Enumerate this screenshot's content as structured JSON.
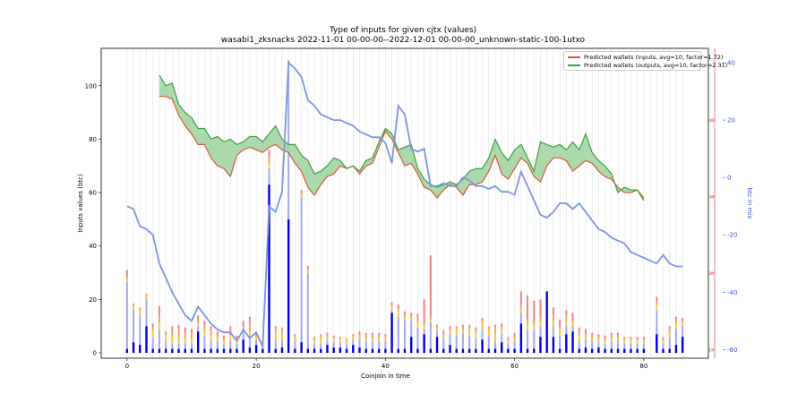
{
  "chart_data": {
    "type": "bar",
    "title": "Type of inputs for given cjtx (values)",
    "subtitle": "wasabi1_zksnacks 2022-11-01 00-00-00--2022-12-01 00-00-00_unknown-static-100-1utxo",
    "xlabel": "Coinjoin in time",
    "ylabel": "Inputs values (btc)",
    "y2label": "btc in mix",
    "xlim": [
      -4,
      90
    ],
    "ylim": [
      -2,
      114
    ],
    "y2lim": [
      -63,
      45
    ],
    "x_ticks": [
      0,
      20,
      40,
      60,
      80
    ],
    "y_ticks": [
      0,
      20,
      40,
      60,
      80,
      100
    ],
    "y2_ticks": [
      -60,
      -40,
      -20,
      0,
      20,
      40
    ],
    "y3_ticks": [
      {
        "value": -60,
        "label": "10"
      },
      {
        "value": -33.3,
        "label": "20"
      },
      {
        "value": -6.6,
        "label": "30"
      },
      {
        "value": 20,
        "label": "40"
      }
    ],
    "grid": "x-vertical-lines",
    "legend_position": "top-right",
    "colors": {
      "bar_bottom": "#0000dd",
      "bar_light_blue": "#a3a8f0",
      "bar_yellow": "#f5c842",
      "bar_orange": "#f4a460",
      "bar_red": "#f08080",
      "inputs_line": "#d9573b",
      "outputs_line": "#3aa33a",
      "band_fill": "#9fd49f",
      "btc_line": "#7b96e0",
      "right_axis": "#3355cc",
      "red_axis": "#cc3333"
    },
    "bars": [
      {
        "x": 0,
        "values": [
          1.5,
          25,
          1,
          1,
          2.5
        ]
      },
      {
        "x": 1,
        "values": [
          4,
          12,
          1,
          1,
          0.5
        ]
      },
      {
        "x": 2,
        "values": [
          3,
          11,
          1.5,
          1,
          0.5
        ]
      },
      {
        "x": 3,
        "values": [
          10,
          10,
          1,
          1,
          0
        ]
      },
      {
        "x": 4,
        "values": [
          1.5,
          4,
          3,
          1,
          1.5
        ]
      },
      {
        "x": 5,
        "values": [
          1.5,
          7,
          3,
          2,
          4
        ]
      },
      {
        "x": 6,
        "values": [
          1.5,
          3,
          2,
          1,
          0.5
        ]
      },
      {
        "x": 7,
        "values": [
          1.5,
          2,
          3,
          2,
          1.5
        ]
      },
      {
        "x": 8,
        "values": [
          1.5,
          2,
          2,
          3,
          2
        ]
      },
      {
        "x": 9,
        "values": [
          1.5,
          2,
          2,
          2,
          2
        ]
      },
      {
        "x": 10,
        "values": [
          1.5,
          2,
          2,
          2,
          1.5
        ]
      },
      {
        "x": 11,
        "values": [
          8,
          2,
          1,
          1,
          2
        ]
      },
      {
        "x": 12,
        "values": [
          1.5,
          5,
          2,
          2,
          1.5
        ]
      },
      {
        "x": 13,
        "values": [
          1.5,
          3,
          2,
          2,
          1.5
        ]
      },
      {
        "x": 14,
        "values": [
          1.5,
          3,
          1,
          1,
          1.5
        ]
      },
      {
        "x": 15,
        "values": [
          1.5,
          2,
          1,
          1,
          1
        ]
      },
      {
        "x": 16,
        "values": [
          1.5,
          3,
          2,
          2,
          1.5
        ]
      },
      {
        "x": 17,
        "values": [
          1.5,
          2,
          1,
          1,
          1
        ]
      },
      {
        "x": 18,
        "values": [
          5,
          3,
          1,
          1,
          2
        ]
      },
      {
        "x": 19,
        "values": [
          2,
          4,
          2,
          3,
          2.5
        ]
      },
      {
        "x": 20,
        "values": [
          3,
          2,
          1,
          1,
          1
        ]
      },
      {
        "x": 21,
        "values": [
          1.5,
          2,
          0.5,
          0.5,
          0
        ]
      },
      {
        "x": 22,
        "values": [
          63,
          6,
          2,
          2,
          3
        ]
      },
      {
        "x": 23,
        "values": [
          1.5,
          3,
          3,
          2,
          0.5
        ]
      },
      {
        "x": 24,
        "values": [
          2,
          3,
          2,
          2,
          0.5
        ]
      },
      {
        "x": 25,
        "values": [
          50,
          56,
          1,
          1,
          1.5
        ]
      },
      {
        "x": 26,
        "values": [
          1.5,
          3,
          1,
          1,
          0.5
        ]
      },
      {
        "x": 27,
        "values": [
          4,
          54,
          1,
          1,
          1
        ]
      },
      {
        "x": 28,
        "values": [
          1.5,
          28,
          1,
          1,
          1
        ]
      },
      {
        "x": 29,
        "values": [
          1.5,
          2,
          1,
          1,
          0.5
        ]
      },
      {
        "x": 30,
        "values": [
          1.5,
          2,
          2,
          1,
          0.5
        ]
      },
      {
        "x": 31,
        "values": [
          3,
          2,
          1,
          1,
          0.5
        ]
      },
      {
        "x": 32,
        "values": [
          2,
          2,
          1,
          1,
          0.5
        ]
      },
      {
        "x": 33,
        "values": [
          2,
          2,
          1,
          1,
          0
        ]
      },
      {
        "x": 34,
        "values": [
          1.5,
          2,
          1,
          1,
          0
        ]
      },
      {
        "x": 35,
        "values": [
          3,
          2,
          1,
          0.5,
          0.5
        ]
      },
      {
        "x": 36,
        "values": [
          2,
          3,
          1,
          1,
          1
        ]
      },
      {
        "x": 37,
        "values": [
          1.5,
          3,
          1,
          1,
          1
        ]
      },
      {
        "x": 38,
        "values": [
          1.5,
          3,
          1,
          1,
          1
        ]
      },
      {
        "x": 39,
        "values": [
          1.5,
          3,
          1,
          1,
          1
        ]
      },
      {
        "x": 40,
        "values": [
          1.5,
          3,
          1,
          1,
          0.5
        ]
      },
      {
        "x": 41,
        "values": [
          15,
          1,
          1,
          1,
          1
        ]
      },
      {
        "x": 42,
        "values": [
          1.5,
          12,
          2,
          1,
          1.5
        ]
      },
      {
        "x": 43,
        "values": [
          1.5,
          11,
          1,
          1,
          1
        ]
      },
      {
        "x": 44,
        "values": [
          6,
          6,
          1,
          1,
          1
        ]
      },
      {
        "x": 45,
        "values": [
          1.5,
          8,
          2,
          2,
          1
        ]
      },
      {
        "x": 46,
        "values": [
          7,
          2,
          1,
          1,
          9
        ]
      },
      {
        "x": 47,
        "values": [
          1.5,
          10,
          1,
          1,
          23
        ]
      },
      {
        "x": 48,
        "values": [
          6,
          2,
          1,
          1,
          0.5
        ]
      },
      {
        "x": 49,
        "values": [
          1.5,
          4,
          1,
          1,
          1
        ]
      },
      {
        "x": 50,
        "values": [
          3,
          4,
          1,
          1,
          1
        ]
      },
      {
        "x": 51,
        "values": [
          1.5,
          5,
          2,
          1,
          0.5
        ]
      },
      {
        "x": 52,
        "values": [
          1.5,
          6,
          1,
          1,
          1
        ]
      },
      {
        "x": 53,
        "values": [
          1.5,
          5,
          2,
          1,
          1
        ]
      },
      {
        "x": 54,
        "values": [
          1.5,
          4,
          2,
          1,
          1
        ]
      },
      {
        "x": 55,
        "values": [
          5,
          4,
          2,
          1,
          1
        ]
      },
      {
        "x": 56,
        "values": [
          1.5,
          5,
          2,
          1,
          0.5
        ]
      },
      {
        "x": 57,
        "values": [
          1.5,
          3,
          3,
          2,
          1
        ]
      },
      {
        "x": 58,
        "values": [
          4,
          3,
          2,
          1,
          1
        ]
      },
      {
        "x": 59,
        "values": [
          1.5,
          2,
          1,
          1,
          0.5
        ]
      },
      {
        "x": 60,
        "values": [
          1.5,
          3,
          1,
          1,
          1
        ]
      },
      {
        "x": 61,
        "values": [
          11,
          4,
          1,
          2,
          5
        ]
      },
      {
        "x": 62,
        "values": [
          1.5,
          7,
          2,
          2,
          9
        ]
      },
      {
        "x": 63,
        "values": [
          1.5,
          7,
          2,
          1,
          8
        ]
      },
      {
        "x": 64,
        "values": [
          6,
          4,
          2,
          2,
          6
        ]
      },
      {
        "x": 65,
        "values": [
          23,
          0,
          0,
          0,
          0
        ]
      },
      {
        "x": 66,
        "values": [
          6,
          4,
          2,
          2,
          3
        ]
      },
      {
        "x": 67,
        "values": [
          1.5,
          5,
          2,
          1,
          3
        ]
      },
      {
        "x": 68,
        "values": [
          7,
          3,
          2,
          2,
          2
        ]
      },
      {
        "x": 69,
        "values": [
          8,
          2,
          1,
          1,
          3
        ]
      },
      {
        "x": 70,
        "values": [
          1.5,
          3,
          2,
          2,
          1
        ]
      },
      {
        "x": 71,
        "values": [
          2,
          3,
          1,
          1,
          2
        ]
      },
      {
        "x": 72,
        "values": [
          1.5,
          3,
          1,
          1,
          1
        ]
      },
      {
        "x": 73,
        "values": [
          2,
          2,
          1,
          1,
          1
        ]
      },
      {
        "x": 74,
        "values": [
          1.5,
          2,
          1,
          1,
          1
        ]
      },
      {
        "x": 75,
        "values": [
          1.5,
          3,
          1,
          1,
          1
        ]
      },
      {
        "x": 76,
        "values": [
          1.5,
          3,
          1,
          1,
          1
        ]
      },
      {
        "x": 77,
        "values": [
          1.5,
          2,
          1,
          1,
          0.5
        ]
      },
      {
        "x": 78,
        "values": [
          1.5,
          2,
          1,
          1,
          0.5
        ]
      },
      {
        "x": 79,
        "values": [
          1.5,
          2,
          1,
          1,
          0.5
        ]
      },
      {
        "x": 80,
        "values": [
          1.5,
          2,
          1,
          1,
          0.5
        ]
      },
      {
        "x": 82,
        "values": [
          7,
          9,
          2,
          1,
          2
        ]
      },
      {
        "x": 83,
        "values": [
          1.5,
          2,
          1,
          1,
          0.5
        ]
      },
      {
        "x": 84,
        "values": [
          1.5,
          4,
          2,
          2,
          0.5
        ]
      },
      {
        "x": 85,
        "values": [
          3,
          6,
          2,
          1,
          1.5
        ]
      },
      {
        "x": 86,
        "values": [
          6,
          4,
          1,
          1,
          1
        ]
      }
    ],
    "series": [
      {
        "name": "Predicted wallets (inputs, avg=10, factor=1.72)",
        "x": [
          5,
          6,
          7,
          8,
          9,
          10,
          11,
          12,
          13,
          14,
          15,
          16,
          17,
          18,
          19,
          20,
          21,
          22,
          23,
          24,
          25,
          26,
          27,
          28,
          29,
          30,
          31,
          32,
          33,
          34,
          35,
          36,
          37,
          38,
          39,
          40,
          41,
          42,
          43,
          44,
          45,
          46,
          47,
          48,
          49,
          50,
          51,
          52,
          53,
          54,
          55,
          56,
          57,
          58,
          59,
          60,
          61,
          62,
          63,
          64,
          65,
          66,
          67,
          68,
          69,
          70,
          71,
          72,
          73,
          74,
          75,
          76,
          77,
          78,
          79,
          80
        ],
        "y": [
          96,
          96,
          95,
          89,
          85,
          82,
          78,
          78,
          73,
          70,
          69,
          66,
          74,
          76,
          77,
          76,
          75,
          77,
          78,
          76,
          75,
          71,
          68,
          62,
          59,
          63,
          66,
          67,
          70,
          69,
          70,
          67,
          70,
          71,
          77,
          83,
          80,
          75,
          70,
          71,
          67,
          62,
          61,
          58,
          61,
          63,
          62,
          59,
          63,
          63,
          64,
          68,
          74,
          67,
          65,
          69,
          73,
          71,
          66,
          64,
          70,
          73,
          73,
          72,
          68,
          70,
          72,
          71,
          68,
          66,
          65,
          62,
          60,
          60,
          61,
          58
        ]
      },
      {
        "name": "Predicted wallets (outputs, avg=10, factor=2.31)",
        "x": [
          5,
          6,
          7,
          8,
          9,
          10,
          11,
          12,
          13,
          14,
          15,
          16,
          17,
          18,
          19,
          20,
          21,
          22,
          23,
          24,
          25,
          26,
          27,
          28,
          29,
          30,
          31,
          32,
          33,
          34,
          35,
          36,
          37,
          38,
          39,
          40,
          41,
          42,
          43,
          44,
          45,
          46,
          47,
          48,
          49,
          50,
          51,
          52,
          53,
          54,
          55,
          56,
          57,
          58,
          59,
          60,
          61,
          62,
          63,
          64,
          65,
          66,
          67,
          68,
          69,
          70,
          71,
          72,
          73,
          74,
          75,
          76,
          77,
          78,
          79,
          80
        ],
        "y": [
          104,
          100,
          101,
          93,
          90,
          88,
          84,
          84,
          80,
          81,
          79,
          80,
          78,
          79,
          81,
          81,
          79,
          82,
          85,
          80,
          78,
          78,
          74,
          72,
          67,
          68,
          70,
          73,
          72,
          69,
          70,
          68,
          72,
          73,
          79,
          84,
          82,
          76,
          77,
          78,
          69,
          65,
          63,
          62,
          63,
          64,
          63,
          65,
          68,
          69,
          69,
          73,
          80,
          75,
          72,
          76,
          78,
          73,
          68,
          79,
          78,
          77,
          78,
          76,
          79,
          76,
          82,
          75,
          72,
          70,
          67,
          60,
          62,
          61,
          61,
          57
        ]
      },
      {
        "name": "btc in mix",
        "axis": "right",
        "x": [
          0,
          1,
          2,
          3,
          4,
          5,
          6,
          7,
          8,
          9,
          10,
          11,
          12,
          13,
          14,
          15,
          16,
          17,
          18,
          19,
          20,
          21,
          22,
          23,
          24,
          25,
          26,
          27,
          28,
          29,
          30,
          31,
          32,
          33,
          34,
          35,
          36,
          37,
          38,
          39,
          40,
          41,
          42,
          43,
          44,
          45,
          46,
          47,
          48,
          49,
          50,
          51,
          52,
          53,
          54,
          55,
          56,
          57,
          58,
          59,
          60,
          61,
          62,
          63,
          64,
          65,
          66,
          67,
          68,
          69,
          70,
          71,
          72,
          73,
          74,
          75,
          76,
          77,
          78,
          79,
          80,
          81,
          82,
          83,
          84,
          85,
          86
        ],
        "y": [
          -10,
          -11,
          -17,
          -18,
          -20,
          -30,
          -35,
          -40,
          -44,
          -48,
          -50,
          -45,
          -48,
          -51,
          -53,
          -54,
          -54,
          -57,
          -53,
          -56,
          -54,
          -59,
          -10,
          -12,
          -5,
          40,
          38,
          35,
          27,
          25,
          22,
          21,
          20,
          20,
          19,
          18,
          16,
          15,
          14,
          14,
          12,
          5,
          25,
          22,
          10,
          9,
          10,
          -3,
          -3,
          -2,
          -3,
          -3,
          0,
          -1,
          -3,
          -3,
          -4,
          -3,
          -5,
          -5,
          -6,
          2,
          -3,
          -8,
          -13,
          -14,
          -12,
          -9,
          -9,
          -11,
          -9,
          -12,
          -15,
          -18,
          -19,
          -21,
          -22,
          -23,
          -26,
          -27,
          -28,
          -29,
          -30,
          -27,
          -30,
          -31,
          -31
        ]
      }
    ]
  }
}
